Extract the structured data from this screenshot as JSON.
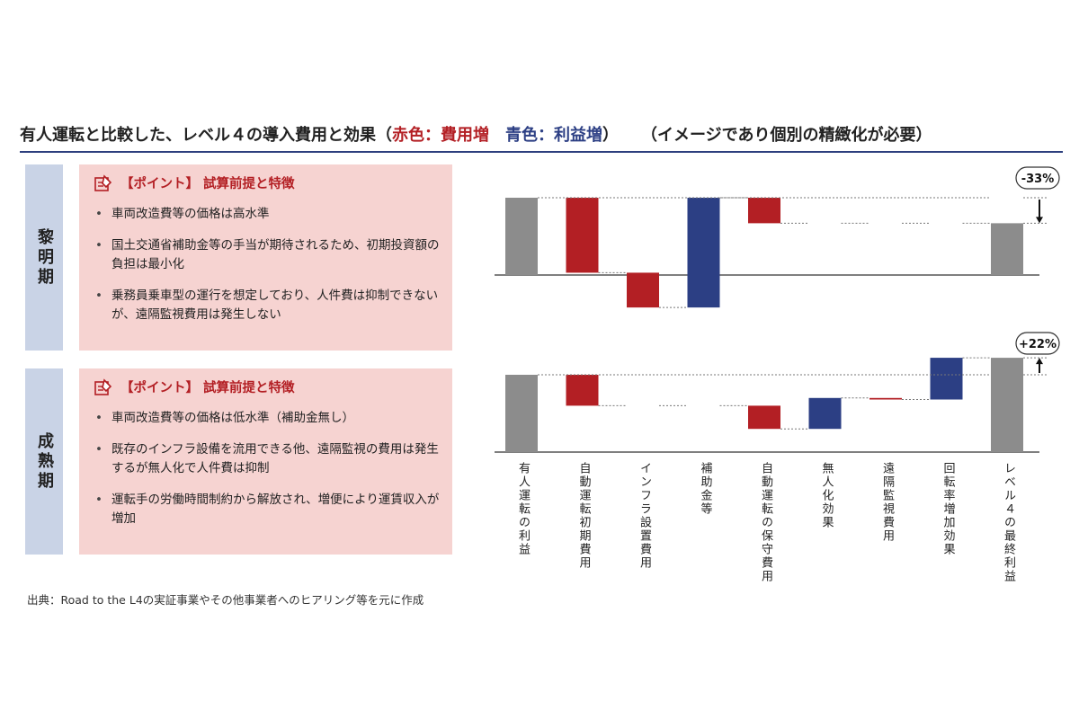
{
  "title": {
    "main": "有人運転と比較した、レベル４の導入費用と効果（",
    "red": "赤色：費用増",
    "sep": "　",
    "blue": "青色：利益増",
    "close": "）",
    "note": "（イメージであり個別の精緻化が必要）"
  },
  "phases": [
    {
      "label": "黎明期",
      "points_title": "【ポイント】 試算前提と特徴",
      "items": [
        "車両改造費等の価格は高水準",
        "国土交通省補助金等の手当が期待されるため、初期投資額の負担は最小化",
        "乗務員乗車型の運行を想定しており、人件費は抑制できないが、遠隔監視費用は発生しない"
      ]
    },
    {
      "label": "成熟期",
      "points_title": "【ポイント】 試算前提と特徴",
      "items": [
        "車両改造費等の価格は低水準（補助金無し）",
        "既存のインフラ設備を流用できる他、遠隔監視の費用は発生するが無人化で人件費は抑制",
        "運転手の労働時間制約から解放され、増便により運賃収入が増加"
      ]
    }
  ],
  "source": "出典：Road to the L4の実証事業やその他事業者へのヒアリング等を元に作成",
  "colors": {
    "cost": "#b31f24",
    "benefit": "#2c3f84",
    "total": "#8c8c8c",
    "panel": "#f6d3d1",
    "phase": "#c9d3e6"
  },
  "chart_data": [
    {
      "type": "waterfall",
      "phase": "黎明期",
      "categories": [
        "有人運転の利益",
        "自動運転初期費用",
        "インフラ設置費用",
        "補助金等",
        "自動運転の保守費用",
        "無人化効果",
        "遠隔監視費用",
        "回転率増加効果",
        "レベル４の最終利益"
      ],
      "steps": [
        {
          "kind": "total",
          "value": 100
        },
        {
          "kind": "cost",
          "value": -97
        },
        {
          "kind": "cost",
          "value": -45
        },
        {
          "kind": "benefit",
          "value": 142
        },
        {
          "kind": "cost",
          "value": -33
        },
        {
          "kind": "none",
          "value": 0
        },
        {
          "kind": "none",
          "value": 0
        },
        {
          "kind": "none",
          "value": 0
        },
        {
          "kind": "total",
          "value": 67
        }
      ],
      "annotation": "-33%"
    },
    {
      "type": "waterfall",
      "phase": "成熟期",
      "categories": [
        "有人運転の利益",
        "自動運転初期費用",
        "インフラ設置費用",
        "補助金等",
        "自動運転の保守費用",
        "無人化効果",
        "遠隔監視費用",
        "回転率増加効果",
        "レベル４の最終利益"
      ],
      "steps": [
        {
          "kind": "total",
          "value": 100
        },
        {
          "kind": "cost",
          "value": -40
        },
        {
          "kind": "none",
          "value": 0
        },
        {
          "kind": "none",
          "value": 0
        },
        {
          "kind": "cost",
          "value": -30
        },
        {
          "kind": "benefit",
          "value": 40
        },
        {
          "kind": "cost",
          "value": -2
        },
        {
          "kind": "benefit",
          "value": 54
        },
        {
          "kind": "total",
          "value": 122
        }
      ],
      "annotation": "+22%"
    }
  ]
}
